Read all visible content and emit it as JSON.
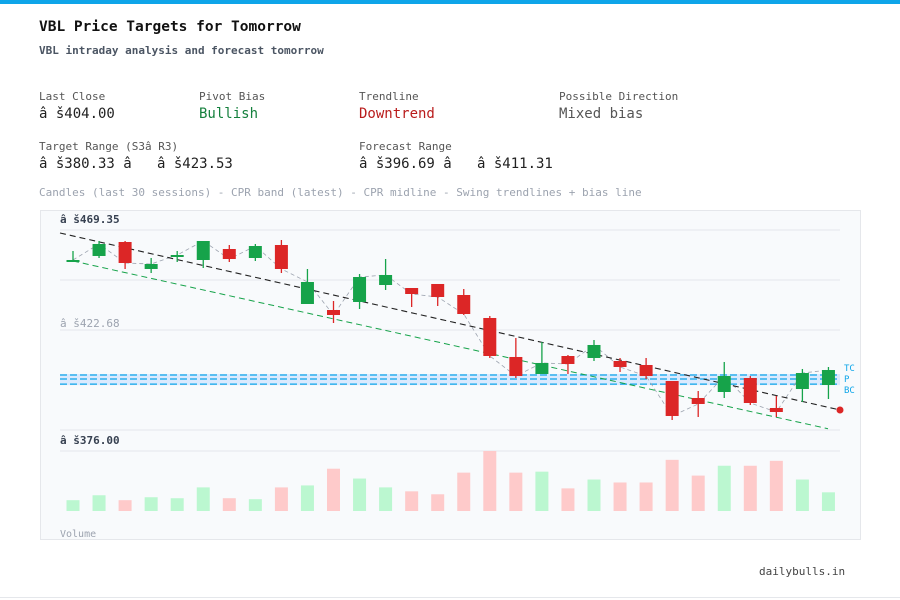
{
  "header": {
    "title": "VBL Price Targets for Tomorrow",
    "subtitle": "VBL intraday analysis and forecast tomorrow"
  },
  "metrics": {
    "last_close": {
      "label": "Last Close",
      "value": "â š404.00"
    },
    "pivot_bias": {
      "label": "Pivot Bias",
      "value": "Bullish",
      "color": "#15803d"
    },
    "trendline": {
      "label": "Trendline",
      "value": "Downtrend",
      "color": "#b91c1c"
    },
    "possible_direction": {
      "label": "Possible Direction",
      "value": "Mixed bias",
      "color": "#555555"
    },
    "target_range": {
      "label": "Target Range (S3â  R3)",
      "value": "â š380.33 â   â š423.53"
    },
    "forecast_range": {
      "label": "Forecast Range",
      "value": "â š396.69 â   â š411.31"
    }
  },
  "caption": "Candles (last 30 sessions) - CPR band (latest) - CPR midline - Swing trendlines + bias line",
  "footer": "dailybulls.in",
  "chart_data": {
    "type": "candlestick",
    "ylim": [
      376.0,
      469.35
    ],
    "y_tick_labels": {
      "top": "â š469.35",
      "mid": "â š422.68",
      "bottom": "â š376.00"
    },
    "volume_label": "Volume",
    "colors": {
      "up": "#16a34a",
      "down": "#dc2626",
      "vol_up": "#bbf7d0",
      "vol_down": "#fecaca",
      "cpr": "#0ea5e9",
      "cpr_band": "#dbeafe",
      "bias_line": "#222222",
      "swing_low_line": "#16a34a"
    },
    "candles": [
      {
        "o": 454.88,
        "h": 459.55,
        "l": 454.88,
        "c": 455.35
      },
      {
        "o": 457.22,
        "h": 464.22,
        "l": 456.28,
        "c": 462.82
      },
      {
        "o": 463.75,
        "h": 464.22,
        "l": 451.15,
        "c": 453.95
      },
      {
        "o": 451.15,
        "h": 456.28,
        "l": 449.28,
        "c": 453.48
      },
      {
        "o": 456.75,
        "h": 459.55,
        "l": 454.41,
        "c": 457.68
      },
      {
        "o": 455.35,
        "h": 464.22,
        "l": 451.61,
        "c": 464.22
      },
      {
        "o": 460.48,
        "h": 462.35,
        "l": 454.41,
        "c": 455.81
      },
      {
        "o": 456.28,
        "h": 462.82,
        "l": 454.88,
        "c": 461.88
      },
      {
        "o": 462.35,
        "h": 464.68,
        "l": 449.28,
        "c": 451.15
      },
      {
        "o": 434.81,
        "h": 451.15,
        "l": 434.81,
        "c": 445.08
      },
      {
        "o": 432.01,
        "h": 436.21,
        "l": 425.94,
        "c": 429.68
      },
      {
        "o": 435.75,
        "h": 448.81,
        "l": 432.48,
        "c": 447.41
      },
      {
        "o": 443.68,
        "h": 455.81,
        "l": 441.35,
        "c": 448.35
      },
      {
        "o": 442.28,
        "h": 442.28,
        "l": 433.41,
        "c": 439.48
      },
      {
        "o": 444.15,
        "h": 444.15,
        "l": 433.88,
        "c": 438.08
      },
      {
        "o": 439.01,
        "h": 441.81,
        "l": 429.68,
        "c": 430.14
      },
      {
        "o": 428.28,
        "h": 429.21,
        "l": 409.61,
        "c": 410.54
      },
      {
        "o": 410.08,
        "h": 418.94,
        "l": 400.27,
        "c": 401.2
      },
      {
        "o": 402.14,
        "h": 417.08,
        "l": 402.14,
        "c": 407.28
      },
      {
        "o": 410.54,
        "h": 411.01,
        "l": 402.14,
        "c": 406.81
      },
      {
        "o": 409.61,
        "h": 418.01,
        "l": 408.21,
        "c": 415.68
      },
      {
        "o": 408.21,
        "h": 409.61,
        "l": 403.07,
        "c": 405.41
      },
      {
        "o": 406.34,
        "h": 409.61,
        "l": 399.81,
        "c": 401.2
      },
      {
        "o": 398.87,
        "h": 398.87,
        "l": 380.67,
        "c": 382.54
      },
      {
        "o": 390.94,
        "h": 394.2,
        "l": 382.07,
        "c": 388.14
      },
      {
        "o": 393.74,
        "h": 407.74,
        "l": 390.94,
        "c": 401.2
      },
      {
        "o": 400.27,
        "h": 401.2,
        "l": 387.67,
        "c": 388.6
      },
      {
        "o": 386.27,
        "h": 391.87,
        "l": 382.07,
        "c": 384.4
      },
      {
        "o": 395.14,
        "h": 404.48,
        "l": 389.07,
        "c": 402.6
      },
      {
        "o": 397.0,
        "h": 405.41,
        "l": 390.47,
        "c": 404.0
      }
    ],
    "volume_relative": [
      11,
      16,
      11,
      14,
      13,
      24,
      13,
      12,
      24,
      26,
      43,
      33,
      24,
      20,
      17,
      39,
      61,
      39,
      40,
      23,
      32,
      29,
      29,
      52,
      36,
      46,
      46,
      51,
      32,
      19
    ],
    "cpr": {
      "tc": 401.67,
      "pivot": 399.81,
      "bc": 397.41,
      "labels": [
        "TC",
        "P",
        "BC"
      ]
    },
    "bias_line": {
      "start": 467.95,
      "end": 385.34
    },
    "swing_low_line": {
      "start": 454.88,
      "end": 376.6
    }
  }
}
